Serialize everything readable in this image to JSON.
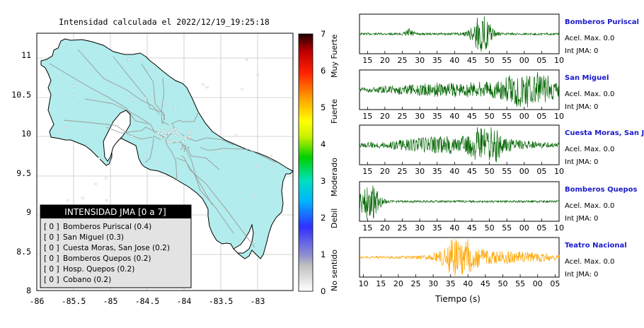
{
  "map": {
    "title": "Intensidad calculada el 2022/12/19_19:25:18",
    "xticks": [
      "-86",
      "-85.5",
      "-85",
      "-84.5",
      "-84",
      "-83.5",
      "-83"
    ],
    "yticks": [
      "8",
      "8.5",
      "9",
      "9.5",
      "10",
      "10.5",
      "11"
    ],
    "xlim": [
      -86,
      -82.5
    ],
    "ylim": [
      8,
      11.4
    ],
    "land_color": "#b2ecec",
    "colorbar": {
      "ticks": [
        "0",
        "1",
        "2",
        "3",
        "4",
        "5",
        "6",
        "7"
      ],
      "labels": [
        "No sentido",
        "Debil",
        "Moderado",
        "Fuerte",
        "Muy Fuerte"
      ],
      "range": [
        0,
        7
      ]
    },
    "legend": {
      "title": "INTENSIDAD JMA [0 a 7]",
      "items": [
        {
          "code": "[ 0 ]",
          "name": "Bomberos Puriscal (0.4)"
        },
        {
          "code": "[ 0 ]",
          "name": "San Miguel (0.3)"
        },
        {
          "code": "[ 0 ]",
          "name": "Cuesta Moras, San Jose (0.2)"
        },
        {
          "code": "[ 0 ]",
          "name": "Bomberos Quepos (0.2)"
        },
        {
          "code": "[ 0 ]",
          "name": "Hosp. Quepos (0.2)"
        },
        {
          "code": "[ 0 ]",
          "name": "Cobano (0.2)"
        }
      ]
    }
  },
  "waveforms": {
    "xlabel": "Tiempo (s)",
    "panels": [
      {
        "station": "Bomberos Puriscal",
        "acel": "Acel. Max. 0.0",
        "int": "Int JMA: 0",
        "color": "#006400",
        "ticks": [
          "15",
          "20",
          "25",
          "30",
          "35",
          "40",
          "45",
          "50",
          "55",
          "00",
          "05",
          "10"
        ]
      },
      {
        "station": "San Miguel",
        "acel": "Acel. Max. 0.0",
        "int": "Int JMA: 0",
        "color": "#006400",
        "ticks": [
          "15",
          "20",
          "25",
          "30",
          "35",
          "40",
          "45",
          "50",
          "55",
          "00",
          "05",
          "10"
        ]
      },
      {
        "station": "Cuesta Moras, San Jose",
        "acel": "Acel. Max. 0.0",
        "int": "Int JMA: 0",
        "color": "#006400",
        "ticks": [
          "15",
          "20",
          "25",
          "30",
          "35",
          "40",
          "45",
          "50",
          "55",
          "00",
          "05",
          "10"
        ]
      },
      {
        "station": "Bomberos Quepos",
        "acel": "Acel. Max. 0.0",
        "int": "Int JMA: 0",
        "color": "#006400",
        "ticks": [
          "15",
          "20",
          "25",
          "30",
          "35",
          "40",
          "45",
          "50",
          "55",
          "00",
          "05",
          "10"
        ]
      },
      {
        "station": "Teatro Nacional",
        "acel": "Acel. Max. 0.0",
        "int": "Int JMA: 0",
        "color": "#ffa500",
        "ticks": [
          "10",
          "15",
          "20",
          "25",
          "30",
          "35",
          "40",
          "45",
          "50",
          "55",
          "00",
          "05"
        ]
      }
    ]
  },
  "chart_data": [
    {
      "type": "heatmap",
      "title": "Intensidad calculada el 2022/12/19_19:25:18",
      "xlabel": "",
      "ylabel": "",
      "xlim": [
        -86,
        -82.5
      ],
      "ylim": [
        8,
        11.4
      ],
      "colorbar_range": [
        0,
        7
      ],
      "colorbar_labels": [
        "No sentido",
        "Debil",
        "Moderado",
        "Fuerte",
        "Muy Fuerte"
      ],
      "stations": [
        {
          "name": "Bomberos Puriscal",
          "intensity": 0.4
        },
        {
          "name": "San Miguel",
          "intensity": 0.3
        },
        {
          "name": "Cuesta Moras, San Jose",
          "intensity": 0.2
        },
        {
          "name": "Bomberos Quepos",
          "intensity": 0.2
        },
        {
          "name": "Hosp. Quepos",
          "intensity": 0.2
        },
        {
          "name": "Cobano",
          "intensity": 0.2
        }
      ]
    },
    {
      "type": "line",
      "xlabel": "Tiempo (s)",
      "series": [
        {
          "name": "Bomberos Puriscal",
          "acel_max": 0.0,
          "int_jma": 0
        },
        {
          "name": "San Miguel",
          "acel_max": 0.0,
          "int_jma": 0
        },
        {
          "name": "Cuesta Moras, San Jose",
          "acel_max": 0.0,
          "int_jma": 0
        },
        {
          "name": "Bomberos Quepos",
          "acel_max": 0.0,
          "int_jma": 0
        },
        {
          "name": "Teatro Nacional",
          "acel_max": 0.0,
          "int_jma": 0
        }
      ]
    }
  ]
}
